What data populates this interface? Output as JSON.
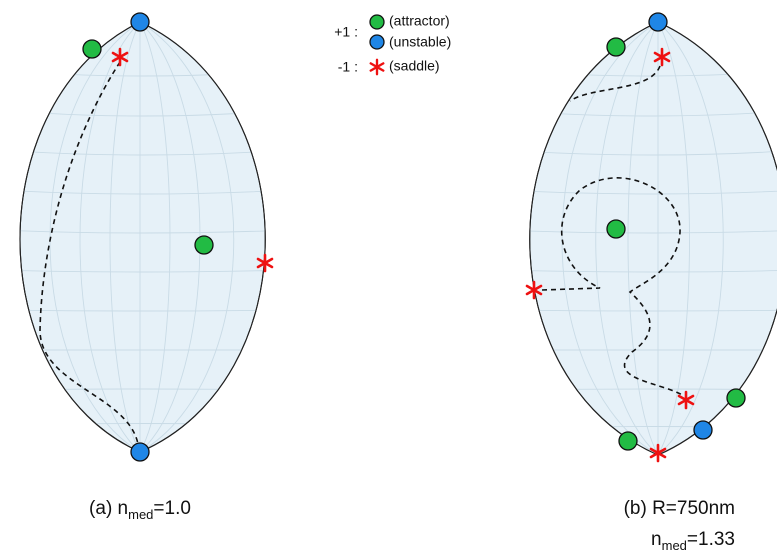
{
  "legend": {
    "plus_label": "+1 :",
    "attractor": "(attractor)",
    "unstable": "(unstable)",
    "minus_label": "-1 :",
    "saddle": "(saddle)"
  },
  "panels": [
    {
      "caption": {
        "prefix": "(a) n",
        "subscript": "med",
        "suffix": "=1.0"
      }
    },
    {
      "caption_line1": "(b) R=750nm",
      "caption_line2": {
        "prefix": "n",
        "subscript": "med",
        "suffix": "=1.33"
      }
    }
  ]
}
